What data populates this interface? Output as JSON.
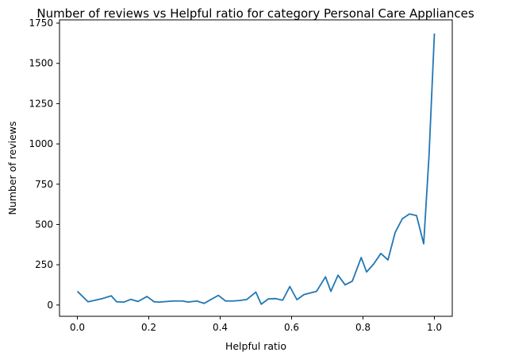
{
  "chart_data": {
    "type": "line",
    "title": "Number of reviews vs Helpful ratio for category Personal Care Appliances",
    "xlabel": "Helpful ratio",
    "ylabel": "Number of reviews",
    "xlim": [
      -0.05,
      1.05
    ],
    "ylim": [
      -70,
      1770
    ],
    "x_ticks": [
      0.0,
      0.2,
      0.4,
      0.6,
      0.8,
      1.0
    ],
    "x_tick_labels": [
      "0.0",
      "0.2",
      "0.4",
      "0.6",
      "0.8",
      "1.0"
    ],
    "y_ticks": [
      0,
      250,
      500,
      750,
      1000,
      1250,
      1500,
      1750
    ],
    "y_tick_labels": [
      "0",
      "250",
      "500",
      "750",
      "1000",
      "1250",
      "1500",
      "1750"
    ],
    "grid": false,
    "series": [
      {
        "color": "#1f77b4",
        "x": [
          0.0,
          0.03,
          0.05,
          0.07,
          0.095,
          0.11,
          0.13,
          0.15,
          0.17,
          0.195,
          0.215,
          0.23,
          0.25,
          0.27,
          0.295,
          0.31,
          0.335,
          0.355,
          0.375,
          0.395,
          0.415,
          0.435,
          0.455,
          0.475,
          0.5,
          0.515,
          0.535,
          0.555,
          0.575,
          0.595,
          0.615,
          0.635,
          0.67,
          0.695,
          0.71,
          0.73,
          0.75,
          0.77,
          0.795,
          0.81,
          0.83,
          0.85,
          0.87,
          0.89,
          0.91,
          0.93,
          0.95,
          0.97,
          0.985,
          1.0
        ],
        "y": [
          85,
          20,
          30,
          40,
          57,
          20,
          18,
          35,
          22,
          53,
          20,
          18,
          22,
          25,
          25,
          18,
          25,
          10,
          35,
          60,
          25,
          25,
          28,
          35,
          80,
          5,
          38,
          40,
          30,
          115,
          33,
          65,
          85,
          175,
          85,
          185,
          125,
          148,
          295,
          205,
          255,
          320,
          280,
          450,
          535,
          565,
          555,
          380,
          930,
          1685
        ]
      }
    ]
  }
}
